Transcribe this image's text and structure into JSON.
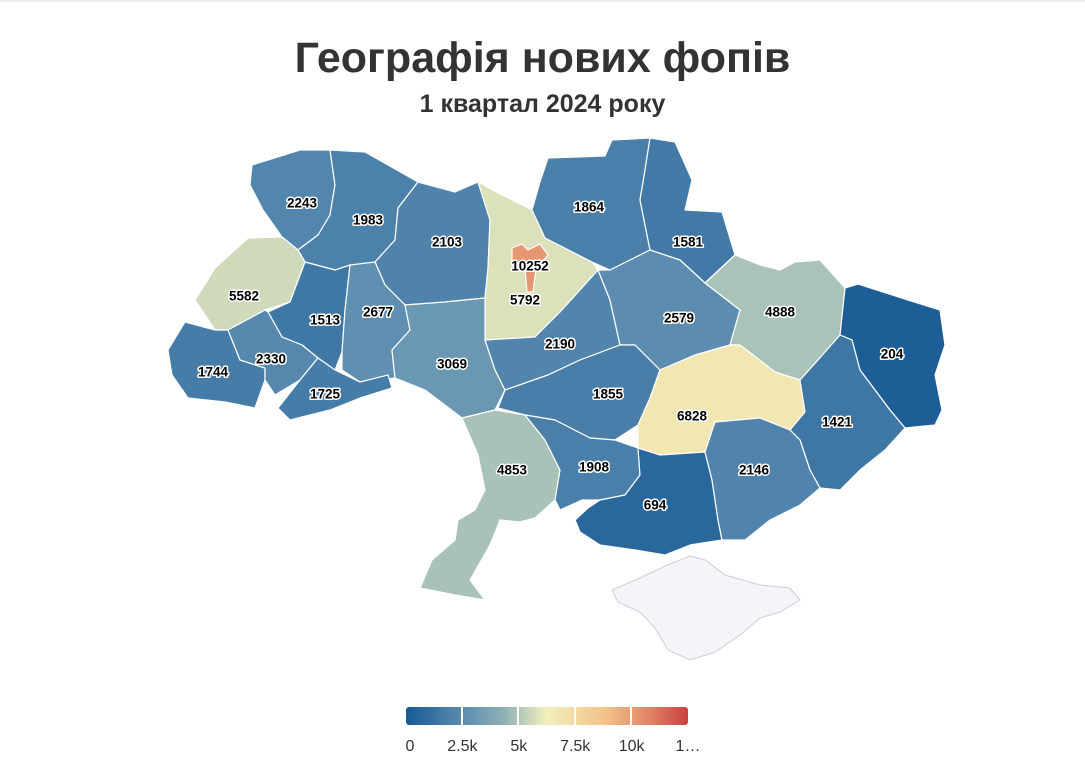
{
  "title": "Географія нових фопів",
  "subtitle": "1 квартал 2024 року",
  "colors": {
    "scale": [
      "#185a95",
      "#5a8bb0",
      "#8fb2b6",
      "#f2f0bc",
      "#f3c48c",
      "#e38a6a",
      "#c8403f"
    ],
    "no_data": "#f4f5f8",
    "label_halo": "#ffffff"
  },
  "chart_data": {
    "type": "choropleth",
    "color_range": [
      0,
      12500
    ],
    "regions": [
      {
        "id": "volyn",
        "value": 2243
      },
      {
        "id": "rivne",
        "value": 1983
      },
      {
        "id": "zhytomyr",
        "value": 2103
      },
      {
        "id": "kyiv-oblast",
        "value": 5792
      },
      {
        "id": "kyiv-city",
        "value": 10252
      },
      {
        "id": "chernihiv",
        "value": 1864
      },
      {
        "id": "sumy",
        "value": 1581
      },
      {
        "id": "lviv",
        "value": 5582
      },
      {
        "id": "ternopil",
        "value": 1513
      },
      {
        "id": "khmelnytskyi",
        "value": 2677
      },
      {
        "id": "vinnytsia",
        "value": 3069
      },
      {
        "id": "cherkasy",
        "value": 2190
      },
      {
        "id": "poltava",
        "value": 2579
      },
      {
        "id": "kharkiv",
        "value": 4888
      },
      {
        "id": "luhansk",
        "value": 204
      },
      {
        "id": "zakarpattia",
        "value": 1744
      },
      {
        "id": "ivano-frankivsk",
        "value": 2330
      },
      {
        "id": "chernivtsi",
        "value": 1725
      },
      {
        "id": "kirovohrad",
        "value": 1855
      },
      {
        "id": "dnipropetrovsk",
        "value": 6828
      },
      {
        "id": "donetsk",
        "value": 1421
      },
      {
        "id": "odesa",
        "value": 4853
      },
      {
        "id": "mykolaiv",
        "value": 1908
      },
      {
        "id": "kherson",
        "value": 694
      },
      {
        "id": "zaporizhzhia",
        "value": 2146
      }
    ],
    "legend": {
      "placement": "bottom-center",
      "ticks": [
        "0",
        "2.5k",
        "5k",
        "7.5k",
        "10k",
        "1…"
      ],
      "tick_values": [
        0,
        2500,
        5000,
        7500,
        10000,
        12500
      ]
    }
  }
}
